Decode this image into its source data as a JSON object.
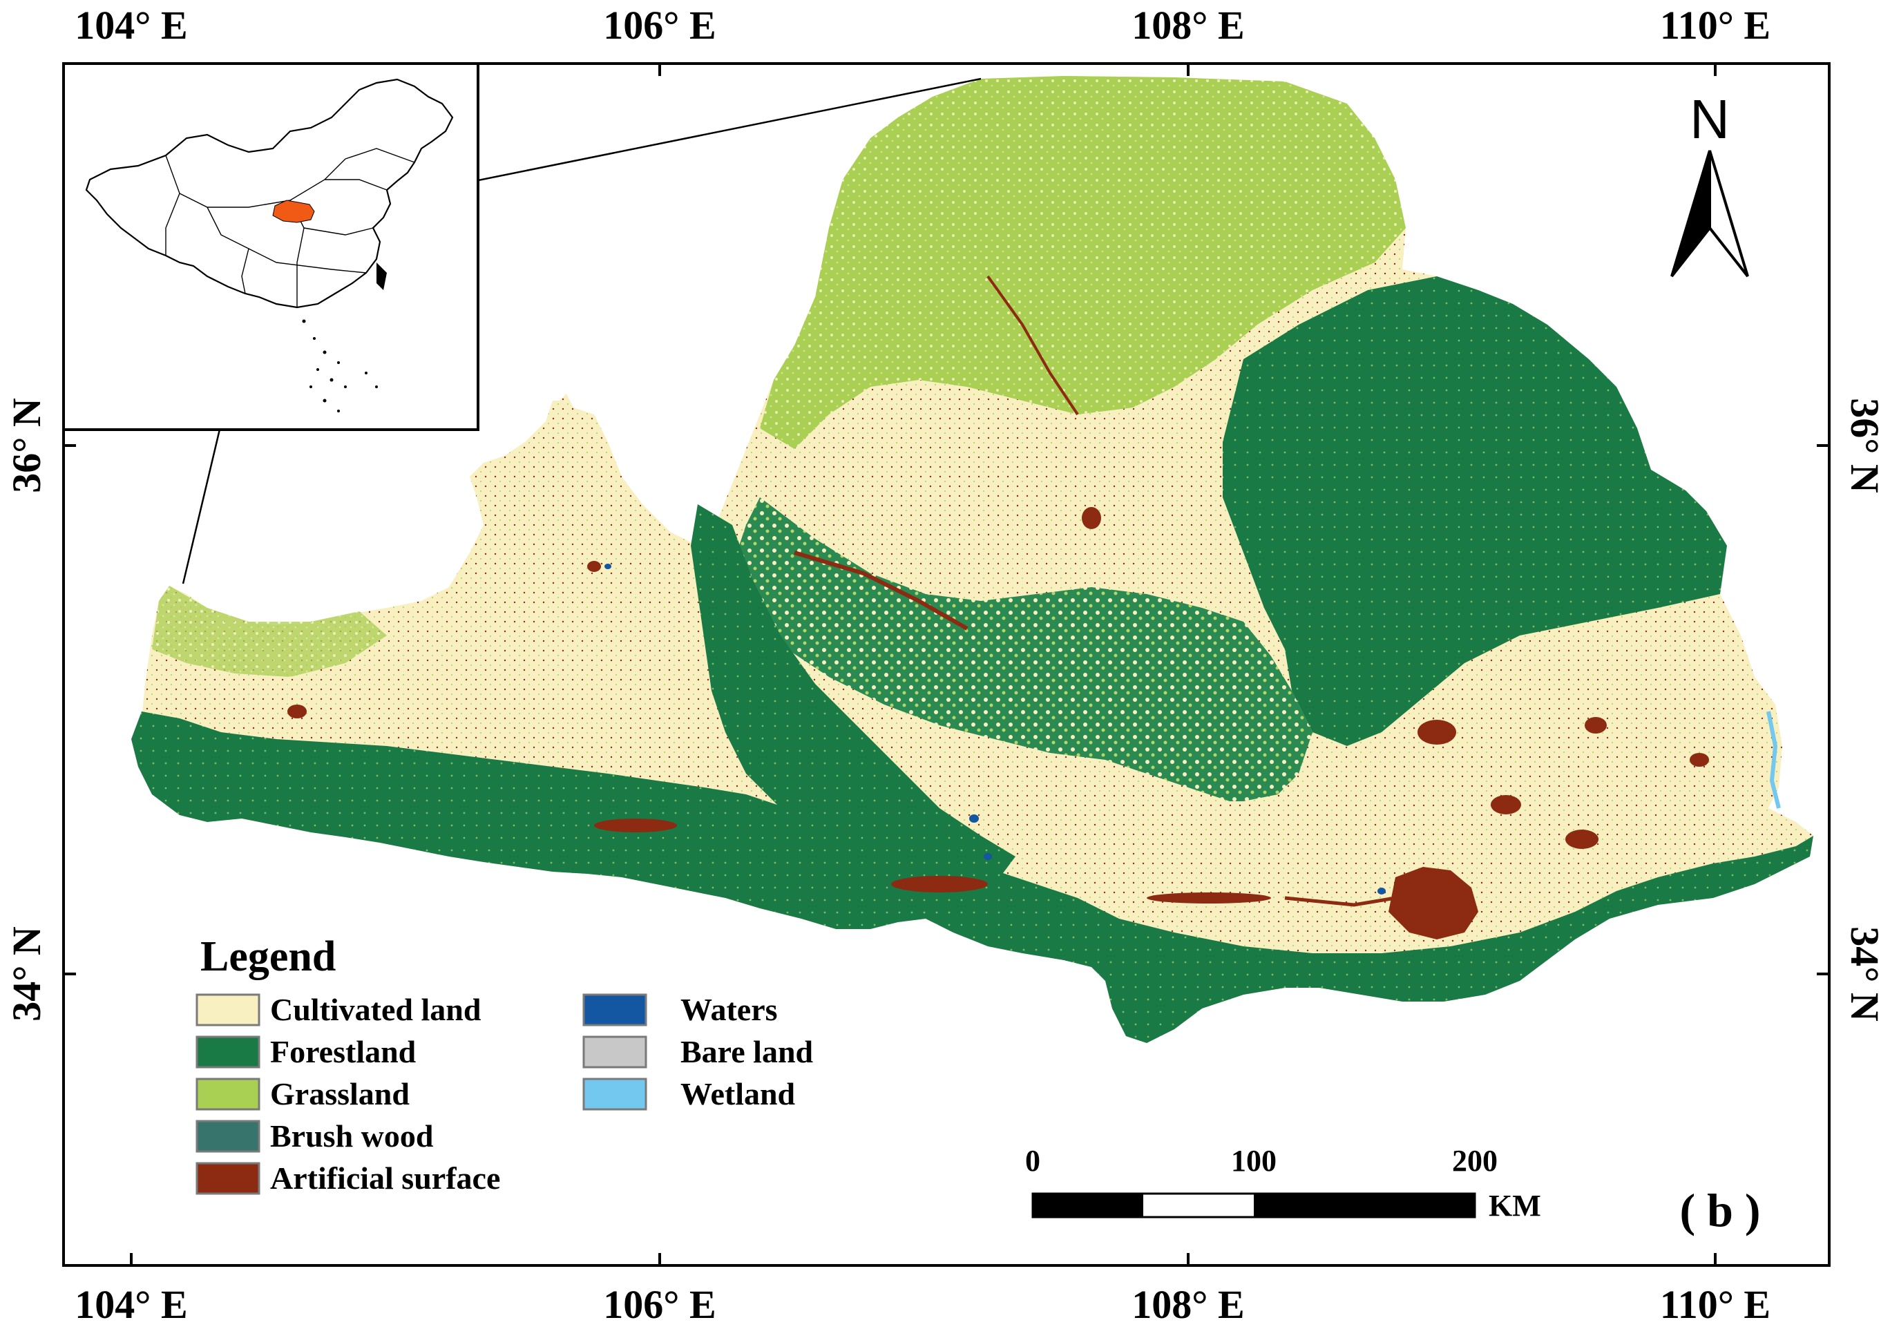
{
  "coordinates": {
    "top_longitudes": [
      "104° E",
      "106° E",
      "108° E",
      "110° E"
    ],
    "bottom_longitudes": [
      "104° E",
      "106° E",
      "108° E",
      "110° E"
    ],
    "left_latitudes": [
      "36° N",
      "34° N"
    ],
    "right_latitudes": [
      "36° N",
      "34° N"
    ]
  },
  "legend": {
    "title": "Legend",
    "items": [
      {
        "label": "Cultivated land",
        "color": "#f8f0c0"
      },
      {
        "label": "Forestland",
        "color": "#1a7a45"
      },
      {
        "label": "Grassland",
        "color": "#a9cf53"
      },
      {
        "label": "Brush wood",
        "color": "#37756c"
      },
      {
        "label": "Artificial surface",
        "color": "#8c2a12"
      },
      {
        "label": "Waters",
        "color": "#1357a3"
      },
      {
        "label": "Bare land",
        "color": "#c8c8c8"
      },
      {
        "label": "Wetland",
        "color": "#73c8ef"
      }
    ]
  },
  "scale_bar": {
    "ticks": [
      "0",
      "100",
      "200"
    ],
    "unit": "KM"
  },
  "north_arrow": {
    "label": "N",
    "icon": "north-arrow-icon"
  },
  "panel_label": "( b )",
  "inset": {
    "description_icon": "china-outline-icon",
    "highlight_color": "#f05a14"
  }
}
